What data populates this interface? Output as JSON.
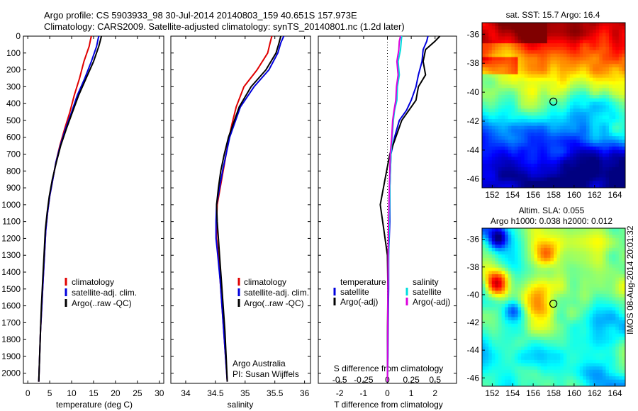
{
  "header": {
    "line1": "Argo profile: CS 5903933_98 30-Jul-2014 20140803_159 40.651S 157.973E",
    "line2": "Climatology: CARS2009. Satellite-adjusted climatology: synTS_20140801.nc (1.2d later)"
  },
  "side_label": "IMOS 08-Aug-2014 20:01:32",
  "colors": {
    "climatology": "#e00000",
    "satellite": "#0000dd",
    "argo": "#000000",
    "sat_salinity": "#00dddd",
    "argo_salinity": "#dd00dd"
  },
  "chart_data": [
    {
      "type": "line",
      "name": "temperature-profile",
      "xlabel": "temperature (deg C)",
      "xlim": [
        -1,
        31
      ],
      "xticks": [
        0,
        5,
        10,
        15,
        20,
        25,
        30
      ],
      "ylim": [
        0,
        2060
      ],
      "yticks": [
        0,
        100,
        200,
        300,
        400,
        500,
        600,
        700,
        800,
        900,
        1000,
        1100,
        1200,
        1300,
        1400,
        1500,
        1600,
        1700,
        1800,
        1900,
        2000
      ],
      "legend": [
        "climatology",
        "satellite-adj. clim.",
        "Argo(..raw -QC)"
      ],
      "series": [
        {
          "name": "climatology",
          "color": "#e00000",
          "x": [
            14.5,
            14.3,
            14.0,
            12.8,
            11.8,
            10.6,
            9.6,
            8.4,
            7.3,
            6.4,
            5.7,
            5.0,
            4.5,
            4.1,
            3.8,
            3.5,
            3.2,
            2.9,
            2.7,
            2.5
          ],
          "y": [
            0,
            20,
            60,
            150,
            250,
            350,
            450,
            550,
            650,
            750,
            850,
            950,
            1050,
            1150,
            1300,
            1450,
            1600,
            1750,
            1900,
            2050
          ]
        },
        {
          "name": "satellite-adj. clim.",
          "color": "#0000dd",
          "x": [
            16.2,
            16.0,
            15.7,
            14.5,
            13.0,
            11.3,
            10.0,
            8.6,
            7.4,
            6.4,
            5.7,
            5.0,
            4.5,
            4.1,
            3.8,
            3.5,
            3.2,
            2.9,
            2.7,
            2.5
          ],
          "y": [
            0,
            20,
            60,
            150,
            250,
            350,
            450,
            550,
            650,
            750,
            850,
            950,
            1050,
            1150,
            1300,
            1450,
            1600,
            1750,
            1900,
            2050
          ]
        },
        {
          "name": "Argo(..raw -QC)",
          "color": "#000000",
          "x": [
            16.8,
            16.6,
            16.2,
            15.0,
            13.3,
            11.6,
            10.2,
            8.8,
            7.5,
            6.5,
            5.6,
            4.9,
            4.4,
            4.0,
            3.7,
            3.4,
            3.1,
            2.9,
            2.7,
            2.5
          ],
          "y": [
            0,
            20,
            60,
            150,
            250,
            350,
            450,
            550,
            650,
            750,
            850,
            950,
            1050,
            1150,
            1300,
            1450,
            1600,
            1750,
            1900,
            2050
          ]
        }
      ]
    },
    {
      "type": "line",
      "name": "salinity-profile",
      "xlabel": "salinity",
      "xlim": [
        33.75,
        36.1
      ],
      "xticks": [
        34,
        34.5,
        35,
        35.5,
        36
      ],
      "ylim": [
        0,
        2060
      ],
      "legend": [
        "climatology",
        "satellite-adj. clim.",
        "Argo(..raw -QC)"
      ],
      "annotation": [
        "Argo Australia",
        "PI: Susan Wijffels"
      ],
      "series": [
        {
          "name": "climatology",
          "color": "#e00000",
          "x": [
            35.45,
            35.42,
            35.38,
            35.2,
            34.98,
            34.85,
            34.78,
            34.73,
            34.68,
            34.63,
            34.58,
            34.53,
            34.52,
            34.52,
            34.55,
            34.58,
            34.61,
            34.64,
            34.67,
            34.7
          ],
          "y": [
            0,
            40,
            100,
            200,
            300,
            420,
            520,
            600,
            700,
            800,
            900,
            1000,
            1100,
            1200,
            1300,
            1450,
            1600,
            1750,
            1900,
            2050
          ]
        },
        {
          "name": "satellite-adj. clim.",
          "color": "#0000dd",
          "x": [
            35.65,
            35.6,
            35.55,
            35.4,
            35.15,
            34.92,
            34.82,
            34.74,
            34.68,
            34.62,
            34.57,
            34.52,
            34.51,
            34.51,
            34.54,
            34.58,
            34.61,
            34.64,
            34.67,
            34.7
          ],
          "y": [
            0,
            40,
            100,
            200,
            300,
            420,
            520,
            600,
            700,
            800,
            900,
            1000,
            1100,
            1200,
            1300,
            1450,
            1600,
            1750,
            1900,
            2050
          ]
        },
        {
          "name": "Argo(..raw -QC)",
          "color": "#000000",
          "x": [
            35.6,
            35.57,
            35.52,
            35.35,
            35.1,
            34.9,
            34.8,
            34.72,
            34.65,
            34.59,
            34.55,
            34.52,
            34.53,
            34.55,
            34.57,
            34.6,
            34.63,
            34.66,
            34.68,
            34.7
          ],
          "y": [
            0,
            40,
            100,
            200,
            300,
            420,
            520,
            600,
            700,
            800,
            900,
            1000,
            1100,
            1200,
            1300,
            1450,
            1600,
            1750,
            1900,
            2050
          ]
        }
      ]
    },
    {
      "type": "line",
      "name": "difference-profile",
      "xlabel": "T difference from climatology",
      "xlabel2": "S difference from climatology",
      "xlim": [
        -2.9,
        2.9
      ],
      "xticks": [
        -2,
        -1,
        0,
        1,
        2
      ],
      "xticks2": [
        -0.5,
        -0.25,
        0,
        0.25,
        0.5
      ],
      "xticklabels2": [
        "-0.5",
        "-0.25",
        "0",
        "0.25",
        "0.5"
      ],
      "ylim": [
        0,
        2060
      ],
      "legend_titles": [
        "temperature",
        "salinity"
      ],
      "legend": [
        "satellite",
        "Argo(-adj)",
        "satellite",
        "Argo(-adj)"
      ],
      "series": [
        {
          "name": "temperature satellite",
          "color": "#0000dd",
          "x": [
            1.7,
            1.65,
            1.5,
            1.45,
            1.3,
            1.2,
            1.0,
            0.8,
            0.5,
            0.3,
            0.15,
            0.1,
            0.1,
            0.05,
            0.05,
            0.03,
            0.02,
            0.0
          ],
          "y": [
            0,
            30,
            80,
            150,
            230,
            300,
            380,
            440,
            500,
            600,
            700,
            900,
            1100,
            1300,
            1500,
            1700,
            1900,
            2050
          ]
        },
        {
          "name": "temperature Argo(-adj)",
          "color": "#000000",
          "x": [
            2.2,
            2.0,
            1.6,
            1.5,
            1.6,
            1.3,
            1.2,
            0.9,
            0.6,
            0.35,
            0.1,
            -0.1,
            -0.3,
            -0.15,
            0.0,
            0.02,
            0.0,
            0.0
          ],
          "y": [
            0,
            30,
            80,
            150,
            230,
            300,
            380,
            440,
            500,
            600,
            700,
            850,
            1000,
            1150,
            1300,
            1500,
            1800,
            2050
          ]
        },
        {
          "name": "salinity satellite",
          "color": "#00dddd",
          "x": [
            0.6,
            0.58,
            0.55,
            0.45,
            0.5,
            0.42,
            0.4,
            0.3,
            0.25,
            0.2,
            0.15,
            0.1,
            0.08,
            0.05,
            0.03,
            0.01,
            0.0
          ],
          "y": [
            0,
            30,
            80,
            150,
            230,
            300,
            380,
            440,
            500,
            600,
            700,
            900,
            1100,
            1300,
            1500,
            1800,
            2050
          ]
        },
        {
          "name": "salinity Argo(-adj)",
          "color": "#dd00dd",
          "x": [
            0.55,
            0.5,
            0.48,
            0.4,
            0.45,
            0.38,
            0.35,
            0.28,
            0.22,
            0.18,
            0.12,
            0.08,
            0.05,
            0.03,
            0.02,
            0.01,
            0.0
          ],
          "y": [
            0,
            30,
            80,
            150,
            230,
            300,
            380,
            440,
            500,
            600,
            700,
            900,
            1100,
            1300,
            1500,
            1800,
            2050
          ]
        }
      ]
    },
    {
      "type": "heatmap",
      "name": "sst-map",
      "title": "sat. SST: 15.7 Argo: 16.4",
      "xticks": [
        152,
        154,
        156,
        158,
        160,
        162,
        164
      ],
      "yticks": [
        -36,
        -38,
        -40,
        -42,
        -44,
        -46
      ],
      "xlim": [
        151,
        165
      ],
      "ylim": [
        -46.6,
        -35.2
      ],
      "float_position": {
        "lon": 157.973,
        "lat": -40.651
      }
    },
    {
      "type": "heatmap",
      "name": "sla-map",
      "title": "Altim. SLA: 0.055",
      "subtitle": "Argo h1000: 0.038 h2000: 0.012",
      "xticks": [
        152,
        154,
        156,
        158,
        160,
        162,
        164
      ],
      "yticks": [
        -36,
        -38,
        -40,
        -42,
        -44,
        -46
      ],
      "xlim": [
        151,
        165
      ],
      "ylim": [
        -46.6,
        -35.2
      ],
      "float_position": {
        "lon": 157.973,
        "lat": -40.651
      }
    }
  ]
}
